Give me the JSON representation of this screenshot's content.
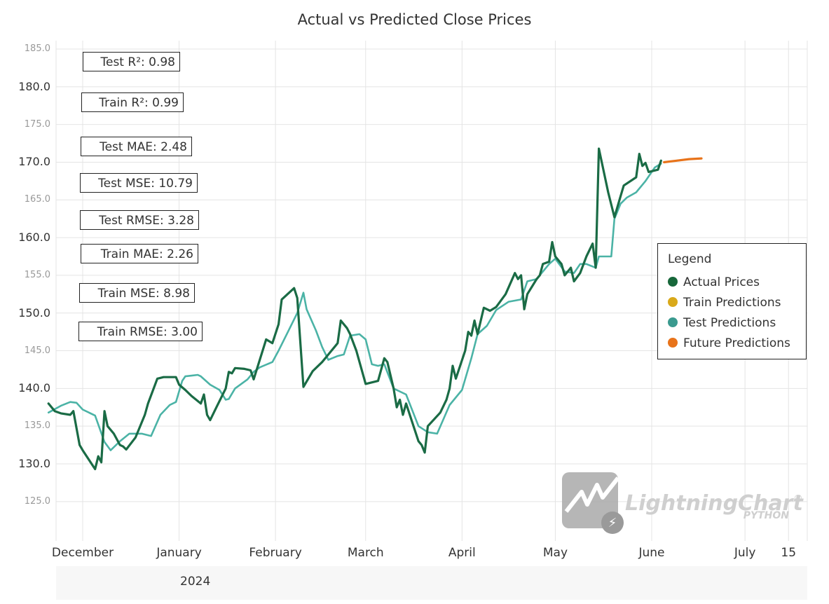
{
  "chart_data": {
    "type": "line",
    "title": "Actual vs Predicted Close Prices",
    "xlabel": "",
    "ylabel": "",
    "ylim": [
      120,
      186
    ],
    "y_ticks": [
      "185.0",
      "180.0",
      "175.0",
      "170.0",
      "165.0",
      "160.0",
      "155.0",
      "150.0",
      "145.0",
      "140.0",
      "135.0",
      "130.0",
      "125.0"
    ],
    "x_tick_labels": [
      "December",
      "January",
      "February",
      "March",
      "April",
      "May",
      "June",
      "July",
      "15"
    ],
    "year_label": "2024",
    "grid": true,
    "legend_position": "right",
    "series": [
      {
        "name": "Actual Prices",
        "color": "#1a6b45",
        "points": [
          [
            "2023-11-20",
            138.0
          ],
          [
            "2023-11-22",
            137.0
          ],
          [
            "2023-11-24",
            136.7
          ],
          [
            "2023-11-27",
            136.5
          ],
          [
            "2023-11-28",
            137.0
          ],
          [
            "2023-11-30",
            132.5
          ],
          [
            "2023-12-01",
            131.8
          ],
          [
            "2023-12-05",
            129.3
          ],
          [
            "2023-12-06",
            131.0
          ],
          [
            "2023-12-07",
            130.2
          ],
          [
            "2023-12-08",
            137.0
          ],
          [
            "2023-12-09",
            135.0
          ],
          [
            "2023-12-11",
            134.0
          ],
          [
            "2023-12-13",
            132.5
          ],
          [
            "2023-12-14",
            132.3
          ],
          [
            "2023-12-15",
            131.9
          ],
          [
            "2023-12-18",
            133.5
          ],
          [
            "2023-12-21",
            136.5
          ],
          [
            "2023-12-22",
            138.0
          ],
          [
            "2023-12-25",
            141.3
          ],
          [
            "2023-12-27",
            141.5
          ],
          [
            "2023-12-29",
            141.5
          ],
          [
            "2023-12-31",
            141.5
          ],
          [
            "2024-01-01",
            140.5
          ],
          [
            "2024-01-03",
            139.8
          ],
          [
            "2024-01-05",
            139.0
          ],
          [
            "2024-01-08",
            138.0
          ],
          [
            "2024-01-09",
            139.2
          ],
          [
            "2024-01-10",
            136.5
          ],
          [
            "2024-01-11",
            135.8
          ],
          [
            "2024-01-13",
            137.5
          ],
          [
            "2024-01-16",
            140.0
          ],
          [
            "2024-01-17",
            142.2
          ],
          [
            "2024-01-18",
            142.0
          ],
          [
            "2024-01-19",
            142.7
          ],
          [
            "2024-01-22",
            142.6
          ],
          [
            "2024-01-24",
            142.4
          ],
          [
            "2024-01-25",
            141.2
          ],
          [
            "2024-01-29",
            146.5
          ],
          [
            "2024-01-31",
            146.0
          ],
          [
            "2024-02-02",
            148.5
          ],
          [
            "2024-02-03",
            151.8
          ],
          [
            "2024-02-07",
            153.3
          ],
          [
            "2024-02-08",
            152.0
          ],
          [
            "2024-02-10",
            140.2
          ],
          [
            "2024-02-13",
            142.3
          ],
          [
            "2024-02-16",
            143.5
          ],
          [
            "2024-02-19",
            145.0
          ],
          [
            "2024-02-20",
            145.5
          ],
          [
            "2024-02-21",
            146.0
          ],
          [
            "2024-02-22",
            149.0
          ],
          [
            "2024-02-24",
            148.0
          ],
          [
            "2024-02-25",
            147.2
          ],
          [
            "2024-02-27",
            145.0
          ],
          [
            "2024-03-01",
            140.6
          ],
          [
            "2024-03-05",
            141.0
          ],
          [
            "2024-03-07",
            144.0
          ],
          [
            "2024-03-08",
            143.5
          ],
          [
            "2024-03-10",
            140.0
          ],
          [
            "2024-03-11",
            137.5
          ],
          [
            "2024-03-12",
            138.5
          ],
          [
            "2024-03-13",
            136.5
          ],
          [
            "2024-03-14",
            138.0
          ],
          [
            "2024-03-16",
            135.5
          ],
          [
            "2024-03-18",
            133.0
          ],
          [
            "2024-03-19",
            132.5
          ],
          [
            "2024-03-20",
            131.5
          ],
          [
            "2024-03-21",
            135.0
          ],
          [
            "2024-03-25",
            136.8
          ],
          [
            "2024-03-27",
            138.5
          ],
          [
            "2024-03-28",
            140.0
          ],
          [
            "2024-03-29",
            143.0
          ],
          [
            "2024-03-30",
            141.3
          ],
          [
            "2024-04-02",
            145.0
          ],
          [
            "2024-04-03",
            147.5
          ],
          [
            "2024-04-04",
            147.0
          ],
          [
            "2024-04-05",
            149.0
          ],
          [
            "2024-04-06",
            147.2
          ],
          [
            "2024-04-08",
            150.7
          ],
          [
            "2024-04-10",
            150.3
          ],
          [
            "2024-04-12",
            150.8
          ],
          [
            "2024-04-15",
            152.5
          ],
          [
            "2024-04-18",
            155.3
          ],
          [
            "2024-04-19",
            154.5
          ],
          [
            "2024-04-20",
            155.0
          ],
          [
            "2024-04-21",
            150.5
          ],
          [
            "2024-04-22",
            152.5
          ],
          [
            "2024-04-25",
            154.5
          ],
          [
            "2024-04-26",
            155.0
          ],
          [
            "2024-04-27",
            156.5
          ],
          [
            "2024-04-29",
            156.8
          ],
          [
            "2024-04-30",
            159.4
          ],
          [
            "2024-05-01",
            157.5
          ],
          [
            "2024-05-03",
            156.5
          ],
          [
            "2024-05-04",
            155.0
          ],
          [
            "2024-05-06",
            156.0
          ],
          [
            "2024-05-07",
            154.2
          ],
          [
            "2024-05-09",
            155.3
          ],
          [
            "2024-05-11",
            157.5
          ],
          [
            "2024-05-13",
            159.2
          ],
          [
            "2024-05-14",
            156.0
          ],
          [
            "2024-05-15",
            171.8
          ],
          [
            "2024-05-18",
            166.0
          ],
          [
            "2024-05-20",
            162.7
          ],
          [
            "2024-05-22",
            165.5
          ],
          [
            "2024-05-23",
            166.9
          ],
          [
            "2024-05-27",
            168.0
          ],
          [
            "2024-05-28",
            171.1
          ],
          [
            "2024-05-29",
            169.5
          ],
          [
            "2024-05-30",
            169.9
          ],
          [
            "2024-05-31",
            168.7
          ],
          [
            "2024-06-03",
            169.0
          ],
          [
            "2024-06-04",
            170.2
          ]
        ]
      },
      {
        "name": "Train Predictions",
        "color": "#d9a91a",
        "points": []
      },
      {
        "name": "Test Predictions",
        "color": "#4bb3a6",
        "points": [
          [
            "2023-11-20",
            136.8
          ],
          [
            "2023-11-24",
            137.7
          ],
          [
            "2023-11-27",
            138.2
          ],
          [
            "2023-11-29",
            138.1
          ],
          [
            "2023-12-01",
            137.2
          ],
          [
            "2023-12-05",
            136.4
          ],
          [
            "2023-12-08",
            132.9
          ],
          [
            "2023-12-10",
            131.8
          ],
          [
            "2023-12-13",
            133.0
          ],
          [
            "2023-12-16",
            134.0
          ],
          [
            "2023-12-20",
            134.0
          ],
          [
            "2023-12-23",
            133.7
          ],
          [
            "2023-12-26",
            136.5
          ],
          [
            "2023-12-29",
            137.8
          ],
          [
            "2023-12-31",
            138.2
          ],
          [
            "2024-01-02",
            141.0
          ],
          [
            "2024-01-03",
            141.6
          ],
          [
            "2024-01-05",
            141.7
          ],
          [
            "2024-01-07",
            141.8
          ],
          [
            "2024-01-08",
            141.6
          ],
          [
            "2024-01-11",
            140.5
          ],
          [
            "2024-01-14",
            139.8
          ],
          [
            "2024-01-16",
            138.5
          ],
          [
            "2024-01-17",
            138.6
          ],
          [
            "2024-01-19",
            140.0
          ],
          [
            "2024-01-23",
            141.2
          ],
          [
            "2024-01-25",
            142.2
          ],
          [
            "2024-01-27",
            142.8
          ],
          [
            "2024-01-31",
            143.5
          ],
          [
            "2024-02-02",
            145.0
          ],
          [
            "2024-02-05",
            147.5
          ],
          [
            "2024-02-08",
            150.0
          ],
          [
            "2024-02-10",
            152.7
          ],
          [
            "2024-02-11",
            150.5
          ],
          [
            "2024-02-14",
            147.7
          ],
          [
            "2024-02-16",
            145.5
          ],
          [
            "2024-02-18",
            143.8
          ],
          [
            "2024-02-21",
            144.3
          ],
          [
            "2024-02-23",
            144.5
          ],
          [
            "2024-02-25",
            147.0
          ],
          [
            "2024-02-28",
            147.2
          ],
          [
            "2024-03-01",
            146.5
          ],
          [
            "2024-03-03",
            143.2
          ],
          [
            "2024-03-05",
            143.0
          ],
          [
            "2024-03-07",
            143.2
          ],
          [
            "2024-03-10",
            140.0
          ],
          [
            "2024-03-14",
            139.2
          ],
          [
            "2024-03-18",
            135.0
          ],
          [
            "2024-03-21",
            134.2
          ],
          [
            "2024-03-24",
            134.0
          ],
          [
            "2024-03-28",
            137.8
          ],
          [
            "2024-04-01",
            139.8
          ],
          [
            "2024-04-04",
            144.0
          ],
          [
            "2024-04-06",
            147.2
          ],
          [
            "2024-04-09",
            148.3
          ],
          [
            "2024-04-12",
            150.4
          ],
          [
            "2024-04-16",
            151.5
          ],
          [
            "2024-04-20",
            151.8
          ],
          [
            "2024-04-22",
            154.2
          ],
          [
            "2024-04-25",
            154.5
          ],
          [
            "2024-04-29",
            156.5
          ],
          [
            "2024-05-01",
            157.2
          ],
          [
            "2024-05-04",
            155.5
          ],
          [
            "2024-05-07",
            155.3
          ],
          [
            "2024-05-09",
            156.5
          ],
          [
            "2024-05-11",
            156.5
          ],
          [
            "2024-05-14",
            156.0
          ],
          [
            "2024-05-15",
            157.5
          ],
          [
            "2024-05-19",
            157.5
          ],
          [
            "2024-05-20",
            162.5
          ],
          [
            "2024-05-22",
            164.5
          ],
          [
            "2024-05-24",
            165.3
          ],
          [
            "2024-05-27",
            166.0
          ],
          [
            "2024-05-30",
            167.5
          ],
          [
            "2024-06-02",
            169.3
          ],
          [
            "2024-06-04",
            169.8
          ]
        ]
      },
      {
        "name": "Future Predictions",
        "color": "#e8731a",
        "points": [
          [
            "2024-06-05",
            170.0
          ],
          [
            "2024-06-09",
            170.2
          ],
          [
            "2024-06-13",
            170.4
          ],
          [
            "2024-06-17",
            170.5
          ]
        ]
      }
    ],
    "annotations": [
      "Test R²: 0.98",
      "Train R²: 0.99",
      "Test MAE: 2.48",
      "Test MSE: 10.79",
      "Test RMSE: 3.28",
      "Train MAE: 2.26",
      "Train MSE: 8.98",
      "Train RMSE: 3.00"
    ]
  },
  "legend": {
    "title": "Legend",
    "items": [
      {
        "label": "Actual Prices",
        "color": "#17673a"
      },
      {
        "label": "Train Predictions",
        "color": "#d9a91a"
      },
      {
        "label": "Test Predictions",
        "color": "#3a9a8f"
      },
      {
        "label": "Future Predictions",
        "color": "#e8731a"
      }
    ]
  },
  "watermark": {
    "brand": "LightningChart",
    "sub": "PYTHON",
    "reg": "®"
  }
}
